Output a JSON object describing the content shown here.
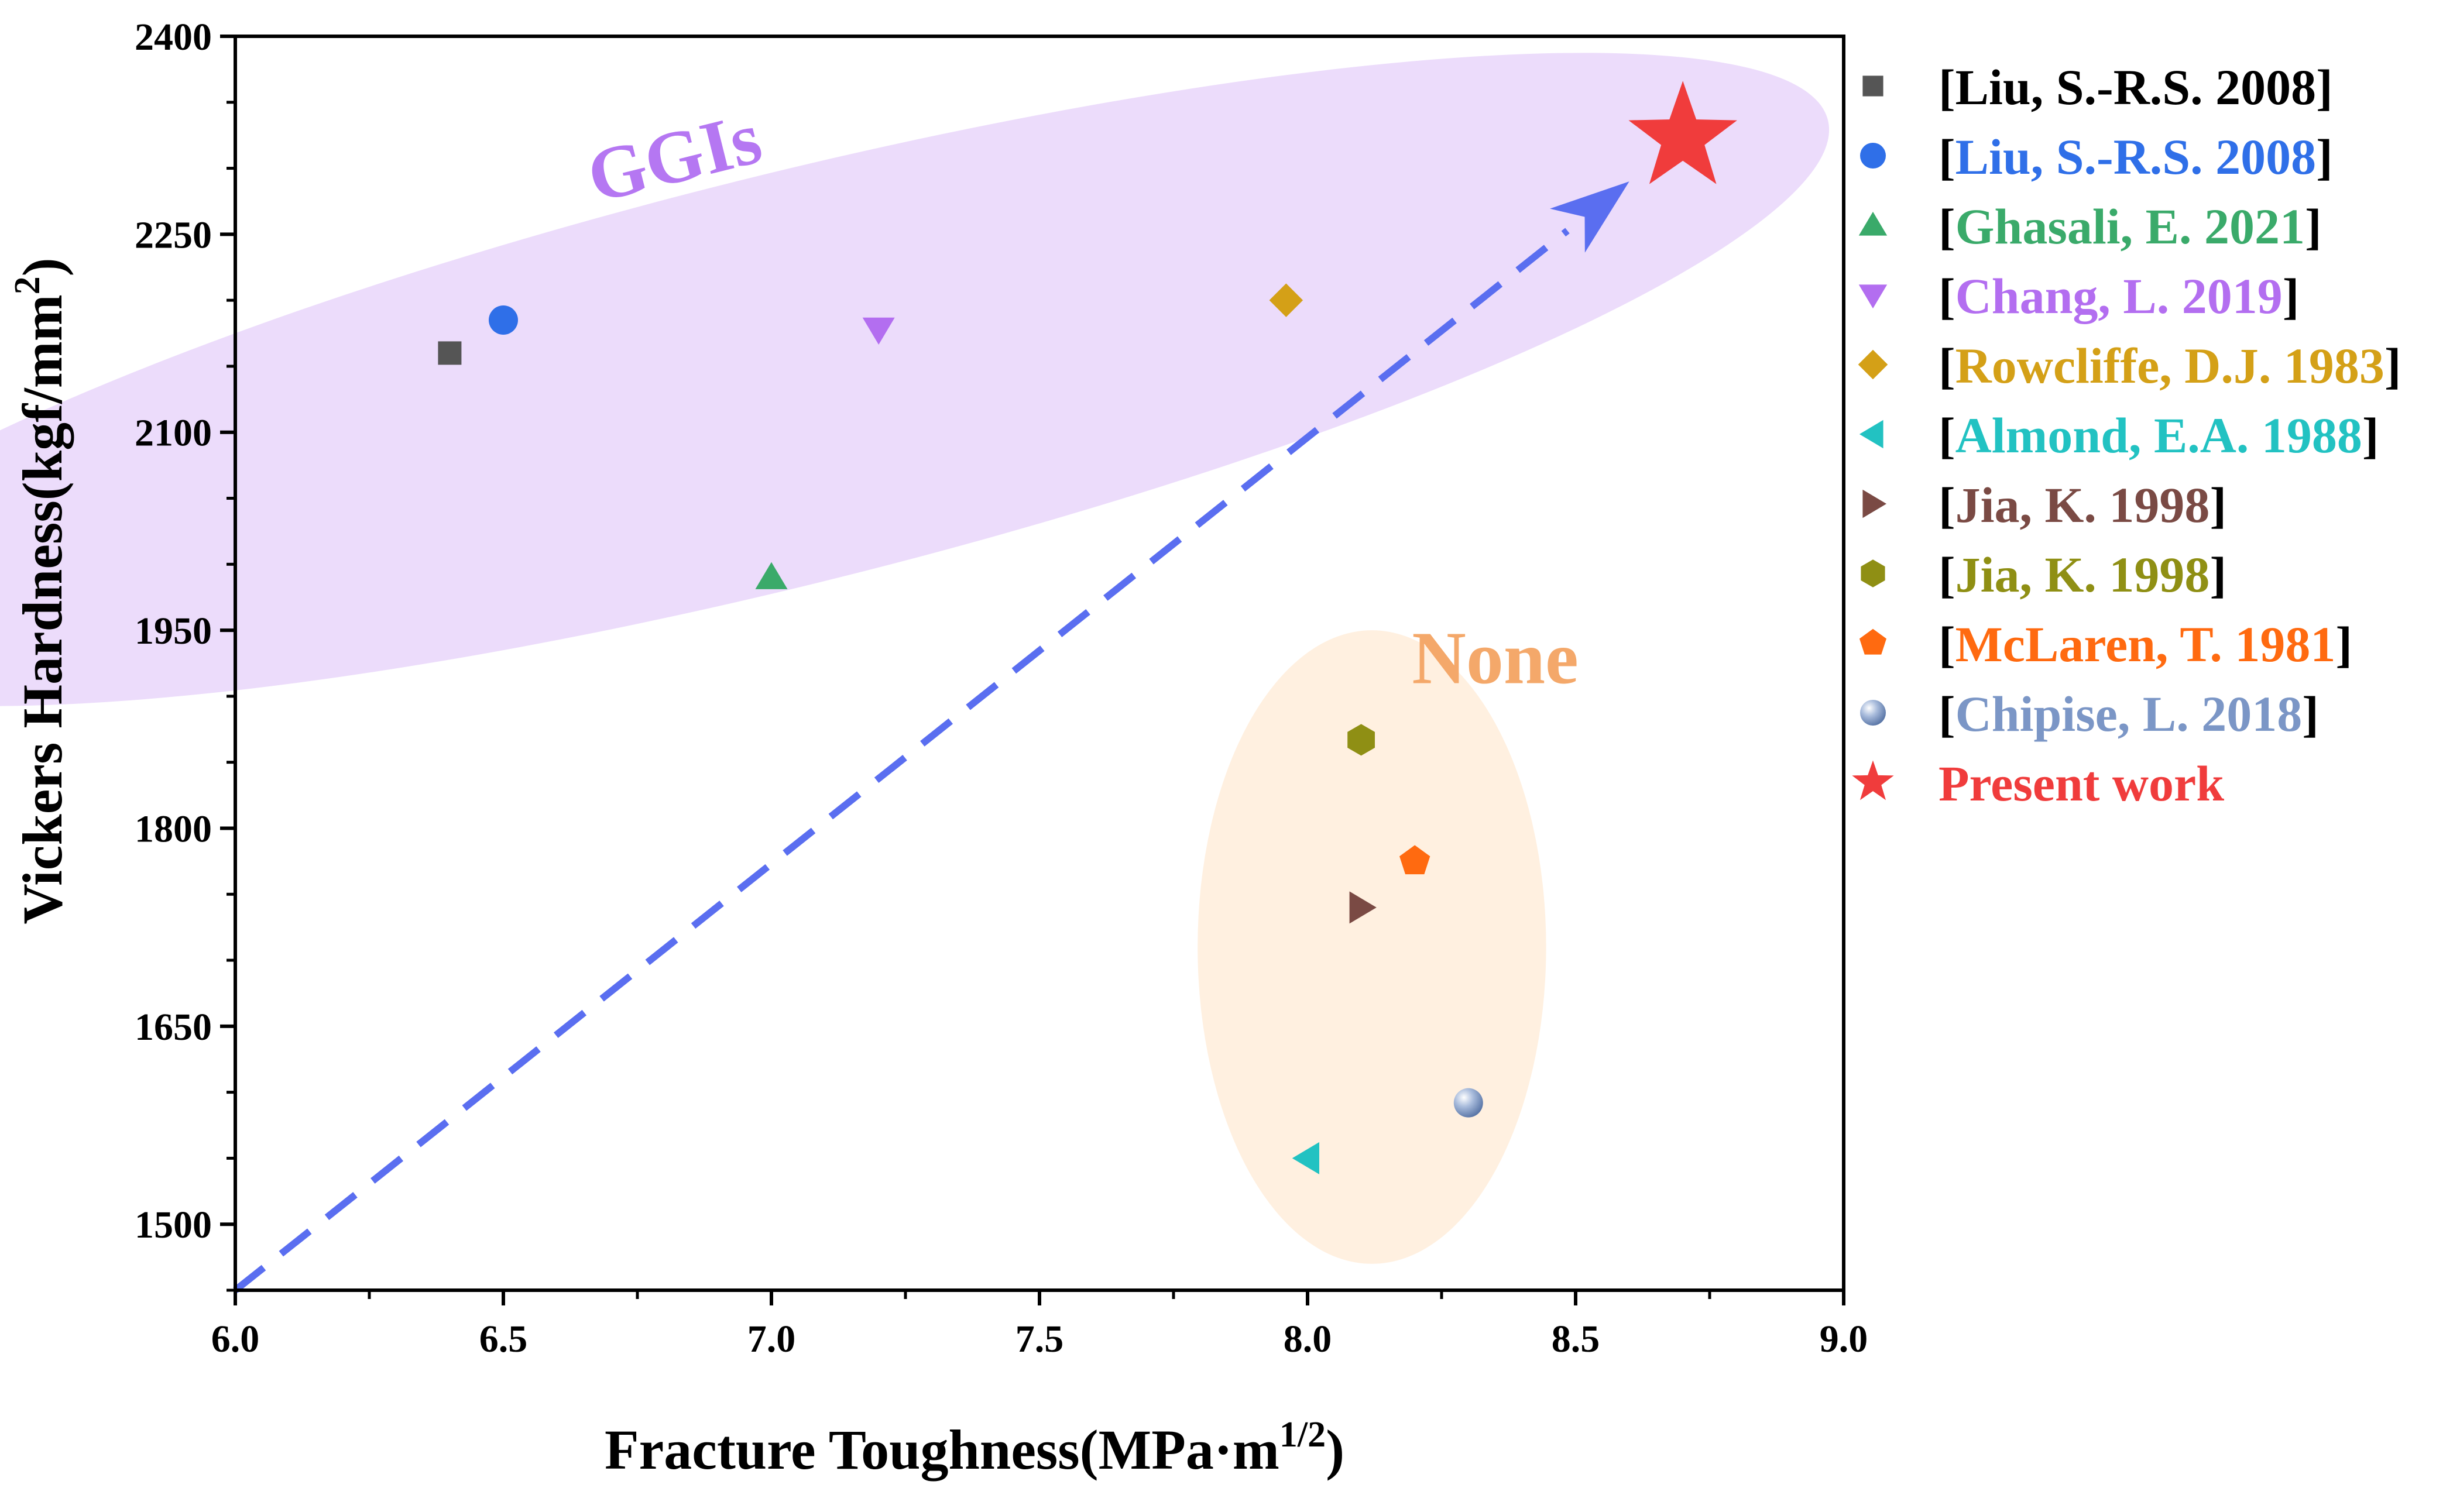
{
  "chart_data": {
    "type": "scatter",
    "title": "",
    "xlabel": "Fracture Toughness(MPa·m",
    "xlabel_sup": "1/2",
    "xlabel_end": ")",
    "ylabel": "Vickers Hardness(kgf/mm",
    "ylabel_sup": "2",
    "ylabel_end": ")",
    "xlim": [
      6.0,
      9.0
    ],
    "ylim": [
      1450,
      2400
    ],
    "x_ticks": [
      6.0,
      6.5,
      7.0,
      7.5,
      8.0,
      8.5,
      9.0
    ],
    "x_tick_labels": [
      "6.0",
      "6.5",
      "7.0",
      "7.5",
      "8.0",
      "8.5",
      "9.0"
    ],
    "y_ticks": [
      1500,
      1650,
      1800,
      1950,
      2100,
      2250,
      2400
    ],
    "y_tick_labels": [
      "1500",
      "1650",
      "1800",
      "1950",
      "2100",
      "2250",
      "2400"
    ],
    "grid": false,
    "legend_position": "outside-right",
    "series": [
      {
        "name": "[Liu, S.-R.S. 2008]",
        "marker": "square",
        "color": "#555555",
        "legend_color": "#000000",
        "x": [
          6.4
        ],
        "y": [
          2160
        ]
      },
      {
        "name": "[Liu, S.-R.S. 2008]",
        "marker": "circle",
        "color": "#2f6fe8",
        "legend_color": "#2f6fe8",
        "x": [
          6.5
        ],
        "y": [
          2185
        ]
      },
      {
        "name": "[Ghasali, E. 2021]",
        "marker": "triangle-up",
        "color": "#3aaa6a",
        "legend_color": "#3aaa6a",
        "x": [
          7.0
        ],
        "y": [
          1990
        ]
      },
      {
        "name": "[Chang, L. 2019]",
        "marker": "triangle-down",
        "color": "#b36ef0",
        "legend_color": "#b36ef0",
        "x": [
          7.2
        ],
        "y": [
          2178
        ]
      },
      {
        "name": "[Rowcliffe, D.J. 1983]",
        "marker": "diamond",
        "color": "#d4a017",
        "legend_color": "#d4a017",
        "x": [
          7.96
        ],
        "y": [
          2200
        ]
      },
      {
        "name": "[Almond, E.A. 1988]",
        "marker": "triangle-left",
        "color": "#22c2c2",
        "legend_color": "#22c2c2",
        "x": [
          8.0
        ],
        "y": [
          1550
        ]
      },
      {
        "name": "[Jia, K. 1998]",
        "marker": "triangle-right",
        "color": "#7a4a44",
        "legend_color": "#7a4a44",
        "x": [
          8.1
        ],
        "y": [
          1740
        ]
      },
      {
        "name": "[Jia, K. 1998]",
        "marker": "hexagon",
        "color": "#8f8f14",
        "legend_color": "#8f8f14",
        "x": [
          8.1
        ],
        "y": [
          1867
        ]
      },
      {
        "name": "[McLaren, T. 1981]",
        "marker": "pentagon",
        "color": "#ff6a10",
        "legend_color": "#ff6a10",
        "x": [
          8.2
        ],
        "y": [
          1775
        ]
      },
      {
        "name": "[Chipise, L. 2018]",
        "marker": "sphere",
        "color": "#7b96c6",
        "legend_color": "#7b96c6",
        "x": [
          8.3
        ],
        "y": [
          1592
        ]
      },
      {
        "name": "Present work",
        "marker": "star",
        "color": "#f03c3c",
        "legend_color": "#f03c3c",
        "x": [
          8.7
        ],
        "y": [
          2323
        ]
      }
    ],
    "annotations": [
      {
        "text": "GGIs",
        "color": "#b577f2",
        "x": 6.83,
        "y": 2290,
        "rotate": -14
      },
      {
        "text": "None",
        "color": "#f4a86a",
        "x": 8.35,
        "y": 1910,
        "rotate": 0
      }
    ],
    "regions": [
      {
        "label": "GGIs",
        "color": "#ecdcfb",
        "cx": 7.03,
        "cy": 2140,
        "rx": 2.0,
        "ry": 155,
        "rotate": -14
      },
      {
        "label": "None",
        "color": "#fff0e0",
        "cx": 8.12,
        "cy": 1710,
        "rx": 0.325,
        "ry": 240,
        "rotate": 0
      }
    ],
    "trend_arrow": {
      "color": "#5a6ef0",
      "from": [
        6.0,
        1450
      ],
      "to": [
        8.6,
        2290
      ]
    }
  }
}
